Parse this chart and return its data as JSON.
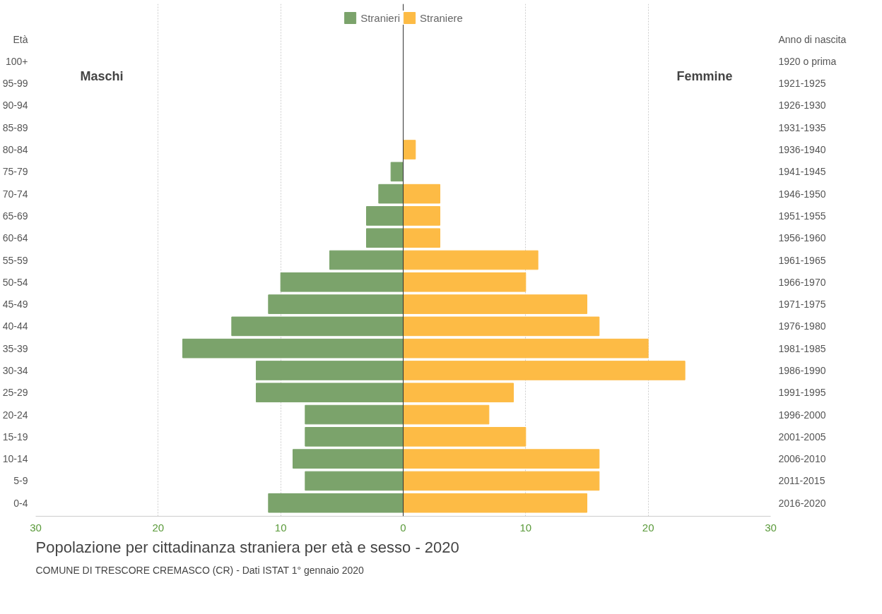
{
  "chart_data": {
    "type": "bar",
    "orientation": "horizontal",
    "stacked": true,
    "title": "Popolazione per cittadinanza straniera per età e sesso - 2020",
    "subtitle": "COMUNE DI TRESCORE CREMASCO (CR) - Dati ISTAT 1° gennaio 2020",
    "ylabel": "Età",
    "y2label": "Anno di nascita",
    "annotations": [
      "Maschi",
      "Femmine"
    ],
    "categories": [
      "100+",
      "95-99",
      "90-94",
      "85-89",
      "80-84",
      "75-79",
      "70-74",
      "65-69",
      "60-64",
      "55-59",
      "50-54",
      "45-49",
      "40-44",
      "35-39",
      "30-34",
      "25-29",
      "20-24",
      "15-19",
      "10-14",
      "5-9",
      "0-4"
    ],
    "y2_categories": [
      "1920 o prima",
      "1921-1925",
      "1926-1930",
      "1931-1935",
      "1936-1940",
      "1941-1945",
      "1946-1950",
      "1951-1955",
      "1956-1960",
      "1961-1965",
      "1966-1970",
      "1971-1975",
      "1976-1980",
      "1981-1985",
      "1986-1990",
      "1991-1995",
      "1996-2000",
      "2001-2005",
      "2006-2010",
      "2011-2015",
      "2016-2020"
    ],
    "series": [
      {
        "name": "Stranieri",
        "color": "#7ba36b",
        "values": [
          0,
          0,
          0,
          0,
          0,
          -1,
          -2,
          -3,
          -3,
          -6,
          -10,
          -11,
          -14,
          -18,
          -12,
          -12,
          -8,
          -8,
          -9,
          -8,
          -11
        ]
      },
      {
        "name": "Straniere",
        "color": "#fdbb45",
        "values": [
          0,
          0,
          0,
          0,
          1,
          0,
          3,
          3,
          3,
          11,
          10,
          15,
          16,
          20,
          23,
          9,
          7,
          10,
          16,
          16,
          15
        ]
      }
    ],
    "xlim": [
      -30,
      30
    ],
    "xticks": [
      {
        "value": -30,
        "label": "30"
      },
      {
        "value": -20,
        "label": "20"
      },
      {
        "value": -10,
        "label": "10"
      },
      0,
      10,
      20,
      30
    ],
    "grid": "x",
    "legend": "top"
  }
}
